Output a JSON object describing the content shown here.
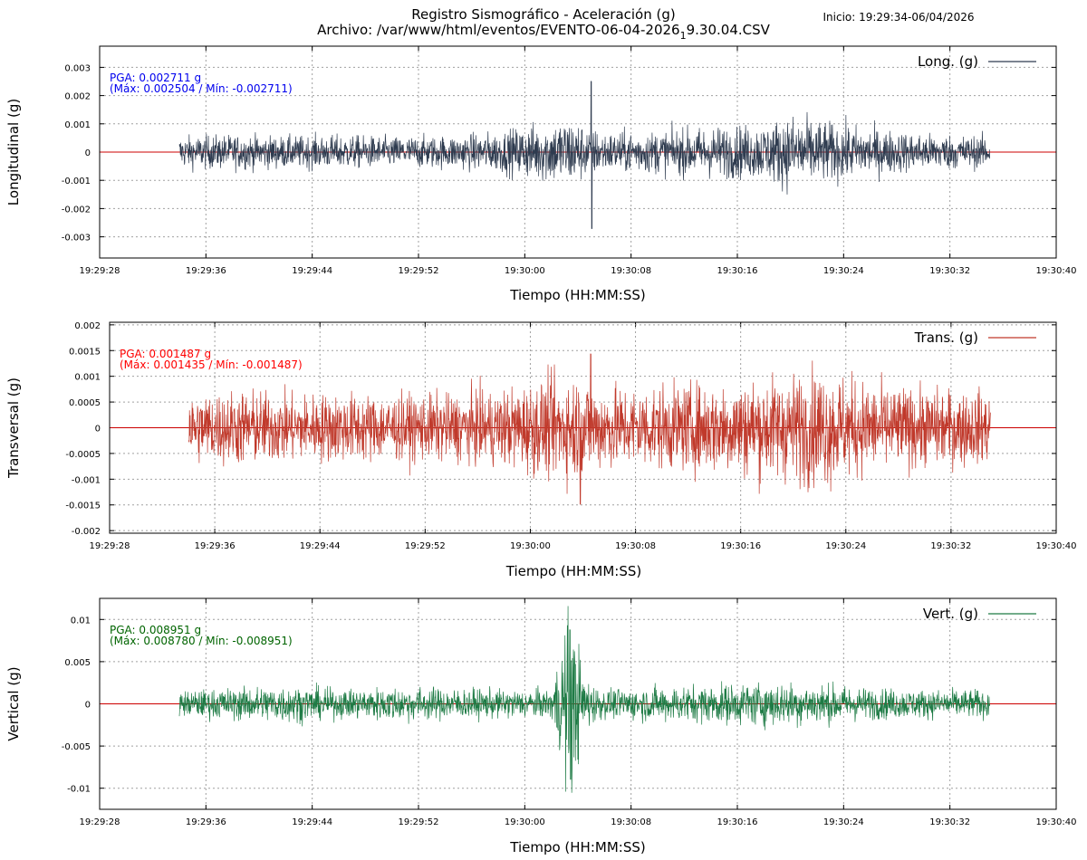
{
  "header": {
    "title_line1": "Registro Sismográfico - Aceleración (g)",
    "title_line2_main": "Archivo: /var/www/html/eventos/EVENTO-06-04-2026",
    "title_line2_sub": "1",
    "title_line2_tail": "9.30.04.CSV",
    "start_info": "Inicio: 19:29:34-06/04/2026"
  },
  "chart_data": [
    {
      "type": "line",
      "ylabel": "Longitudinal (g)",
      "xlabel": "Tiempo (HH:MM:SS)",
      "legend": "Long. (g)",
      "legend_position": "top-right",
      "grid": true,
      "color": "#2e3b4f",
      "baseline_color": "#cc0000",
      "pga_text": "PGA: 0.002711 g",
      "range_text": "(Máx: 0.002504 / Mín: -0.002711)",
      "annotation_color": "#0000ee",
      "x_ticks": [
        "19:29:28",
        "19:29:36",
        "19:29:44",
        "19:29:52",
        "19:30:00",
        "19:30:08",
        "19:30:16",
        "19:30:24",
        "19:30:32",
        "19:30:40"
      ],
      "y_ticks": [
        "0.003",
        "0.002",
        "0.001",
        "0",
        "-0.001",
        "-0.002",
        "-0.003"
      ],
      "ylim": [
        -0.00375,
        0.00375
      ],
      "x_range_s": [
        0,
        72
      ],
      "record_range_s": [
        6,
        67
      ],
      "baseline_value": 0,
      "envelope_s": [
        0,
        6,
        10,
        14,
        18,
        22,
        26,
        30,
        33,
        35.5,
        36.5,
        38,
        42,
        46,
        50,
        52,
        54,
        58,
        62,
        67
      ],
      "envelope_amp": [
        0.0003,
        0.0003,
        0.00033,
        0.0003,
        0.00032,
        0.00029,
        0.00031,
        0.00038,
        0.00055,
        0.00065,
        0.0005,
        0.00038,
        0.0004,
        0.00048,
        0.00052,
        0.0007,
        0.0006,
        0.00045,
        0.00035,
        0.0003
      ],
      "max": 0.002504,
      "max_time_s": 37.0,
      "min": -0.002711,
      "min_time_s": 37.05
    },
    {
      "type": "line",
      "ylabel": "Transversal (g)",
      "xlabel": "Tiempo (HH:MM:SS)",
      "legend": "Trans. (g)",
      "legend_position": "top-right",
      "grid": true,
      "color": "#c0392b",
      "baseline_color": "#cc0000",
      "pga_text": "PGA: 0.001487 g",
      "range_text": "(Máx: 0.001435 / Mín: -0.001487)",
      "annotation_color": "#ff0000",
      "x_ticks": [
        "19:29:28",
        "19:29:36",
        "19:29:44",
        "19:29:52",
        "19:30:00",
        "19:30:08",
        "19:30:16",
        "19:30:24",
        "19:30:32",
        "19:30:40"
      ],
      "y_ticks": [
        "0.002",
        "0.0015",
        "0.001",
        "0.0005",
        "0",
        "-0.0005",
        "-0.001",
        "-0.0015",
        "-0.002"
      ],
      "ylim": [
        -0.00205,
        0.00205
      ],
      "x_range_s": [
        0,
        72
      ],
      "record_range_s": [
        6,
        67
      ],
      "baseline_value": 0,
      "envelope_s": [
        0,
        6,
        10,
        14,
        18,
        22,
        26,
        30,
        33,
        35.5,
        37,
        40,
        44,
        48,
        52,
        54,
        58,
        62,
        67
      ],
      "envelope_amp": [
        0.00035,
        0.00035,
        0.0004,
        0.00035,
        0.00036,
        0.00034,
        0.00035,
        0.0004,
        0.0005,
        0.00055,
        0.00045,
        0.00042,
        0.00045,
        0.0005,
        0.00055,
        0.00062,
        0.00045,
        0.0004,
        0.00038
      ],
      "max": 0.001435,
      "max_time_s": 36.6,
      "min": -0.001487,
      "min_time_s": 35.8
    },
    {
      "type": "line",
      "ylabel": "Vertical (g)",
      "xlabel": "Tiempo (HH:MM:SS)",
      "legend": "Vert. (g)",
      "legend_position": "top-right",
      "grid": true,
      "color": "#1e7b45",
      "baseline_color": "#cc0000",
      "pga_text": "PGA: 0.008951 g",
      "range_text": "(Máx: 0.008780 / Mín: -0.008951)",
      "annotation_color": "#006400",
      "x_ticks": [
        "19:29:28",
        "19:29:36",
        "19:29:44",
        "19:29:52",
        "19:30:00",
        "19:30:08",
        "19:30:16",
        "19:30:24",
        "19:30:32",
        "19:30:40"
      ],
      "y_ticks": [
        "0.01",
        "0.005",
        "0",
        "-0.005",
        "-0.01"
      ],
      "ylim": [
        -0.0125,
        0.0125
      ],
      "x_range_s": [
        0,
        72
      ],
      "record_range_s": [
        6,
        67
      ],
      "baseline_value": 0,
      "envelope_s": [
        0,
        6,
        10,
        14,
        18,
        22,
        26,
        30,
        34,
        35.3,
        35.8,
        36.6,
        38,
        42,
        46,
        50,
        54,
        58,
        62,
        67
      ],
      "envelope_amp": [
        0.0008,
        0.0008,
        0.001,
        0.0012,
        0.0009,
        0.0011,
        0.001,
        0.0009,
        0.0009,
        0.006,
        0.0045,
        0.0016,
        0.0009,
        0.0011,
        0.0012,
        0.0014,
        0.0013,
        0.001,
        0.0009,
        0.0009
      ],
      "max": 0.00878,
      "max_time_s": 35.4,
      "min": -0.008951,
      "min_time_s": 35.45
    }
  ]
}
